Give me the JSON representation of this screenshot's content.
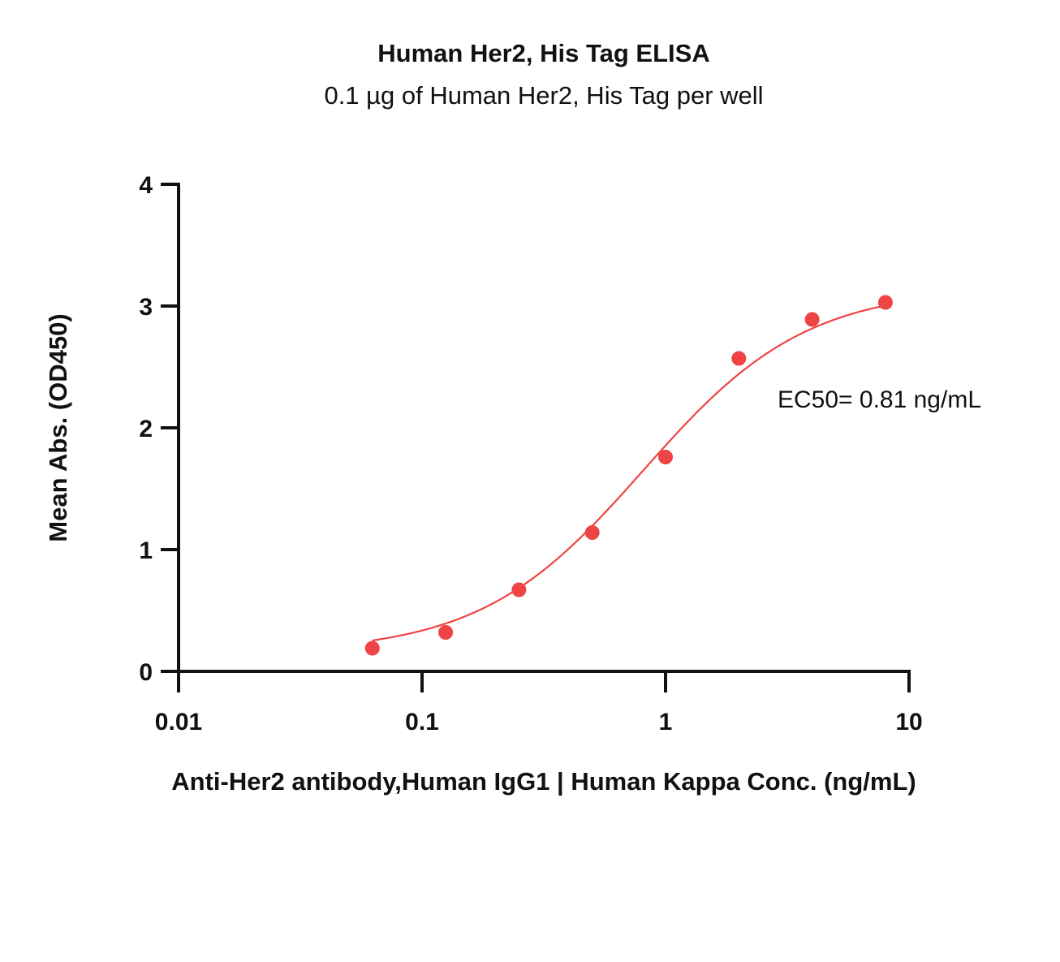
{
  "chart_data": {
    "type": "scatter",
    "title": "Human Her2, His Tag ELISA",
    "subtitle": "0.1 µg of Human Her2, His Tag per well",
    "xlabel": "Anti-Her2 antibody,Human IgG1 | Human Kappa Conc. (ng/mL)",
    "ylabel": "Mean Abs. (OD450)",
    "x_scale": "log",
    "xlim": [
      0.01,
      10
    ],
    "ylim": [
      0,
      4
    ],
    "x_ticks": [
      0.01,
      0.1,
      1,
      10
    ],
    "x_tick_labels": [
      "0.01",
      "0.1",
      "1",
      "10"
    ],
    "y_ticks": [
      0,
      1,
      2,
      3,
      4
    ],
    "y_tick_labels": [
      "0",
      "1",
      "2",
      "3",
      "4"
    ],
    "grid": false,
    "series": [
      {
        "color": "#ef4444",
        "x": [
          0.0625,
          0.125,
          0.25,
          0.5,
          1,
          2,
          4,
          8
        ],
        "y": [
          0.19,
          0.32,
          0.67,
          1.14,
          1.76,
          2.57,
          2.89,
          3.03
        ],
        "fit": {
          "model": "4PL",
          "bottom": 0.15,
          "top": 3.15,
          "ec50": 0.81,
          "hill": 1.3,
          "range": [
            0.0625,
            8
          ]
        }
      }
    ],
    "annotations": [
      {
        "text": "EC50= 0.81 ng/mL"
      }
    ]
  }
}
